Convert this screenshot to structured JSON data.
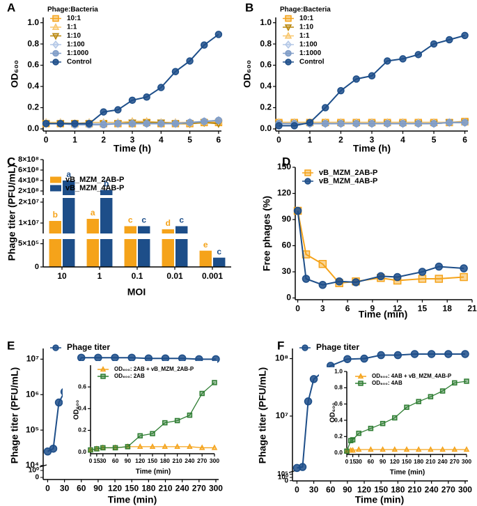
{
  "chart_data": [
    {
      "type": "line",
      "panel": "A",
      "xlabel": "Time (h)",
      "ylabel": "OD₆₀₀",
      "legend_title": "Phage:Bacteria",
      "legend": "upper left",
      "x": [
        0,
        0.5,
        1,
        1.5,
        2,
        2.5,
        3,
        3.5,
        4,
        4.5,
        5,
        5.5,
        6
      ],
      "xlim": [
        -0.1,
        6.1
      ],
      "xticks": [
        0,
        1,
        2,
        3,
        4,
        5,
        6
      ],
      "ylim": [
        -0.02,
        1.05
      ],
      "yticks": [
        {
          "value": 0,
          "label": "0.0"
        },
        0.2,
        0.4,
        0.6,
        0.8,
        {
          "value": 1,
          "label": "1.0"
        }
      ],
      "series": [
        {
          "name": "10:1",
          "color": "#f5a31a",
          "marker": "square",
          "values": [
            0.05,
            0.05,
            0.05,
            0.05,
            0.05,
            0.05,
            0.05,
            0.06,
            0.05,
            0.05,
            0.05,
            0.06,
            0.06
          ]
        },
        {
          "name": "1:1",
          "color": "#f8c66b",
          "marker": "triangle",
          "values": [
            0.06,
            0.06,
            0.05,
            0.06,
            0.06,
            0.06,
            0.07,
            0.07,
            0.06,
            0.06,
            0.06,
            0.07,
            0.07
          ]
        },
        {
          "name": "1:10",
          "color": "#b8860b",
          "marker": "triangle-down",
          "values": [
            0.05,
            0.05,
            0.05,
            0.05,
            0.05,
            0.05,
            0.06,
            0.06,
            0.06,
            0.05,
            0.05,
            0.06,
            0.05
          ]
        },
        {
          "name": "1:100",
          "color": "#b3c7e6",
          "marker": "diamond",
          "values": [
            0.05,
            0.05,
            0.04,
            0.05,
            0.05,
            0.05,
            0.05,
            0.05,
            0.05,
            0.05,
            0.06,
            0.07,
            0.08
          ]
        },
        {
          "name": "1:1000",
          "color": "#7f9cc7",
          "marker": "circle",
          "values": [
            0.05,
            0.05,
            0.04,
            0.04,
            0.04,
            0.05,
            0.05,
            0.05,
            0.05,
            0.05,
            0.06,
            0.07,
            0.08
          ]
        },
        {
          "name": "Control",
          "color": "#1d4e89",
          "marker": "circle",
          "values": [
            0.05,
            0.05,
            0.05,
            0.05,
            0.16,
            0.18,
            0.27,
            0.3,
            0.39,
            0.54,
            0.64,
            0.79,
            0.89
          ]
        }
      ]
    },
    {
      "type": "line",
      "panel": "B",
      "xlabel": "Time (h)",
      "ylabel": "OD₆₀₀",
      "legend_title": "Phage:Bacteria",
      "legend": "upper left",
      "x": [
        0,
        0.5,
        1,
        1.5,
        2,
        2.5,
        3,
        3.5,
        4,
        4.5,
        5,
        5.5,
        6
      ],
      "xlim": [
        -0.1,
        6.1
      ],
      "xticks": [
        0,
        1,
        2,
        3,
        4,
        5,
        6
      ],
      "ylim": [
        -0.02,
        1.05
      ],
      "yticks": [
        {
          "value": 0,
          "label": "0.0"
        },
        0.2,
        0.4,
        0.6,
        0.8,
        {
          "value": 1,
          "label": "1.0"
        }
      ],
      "series": [
        {
          "name": "10:1",
          "color": "#f5a31a",
          "marker": "square",
          "values": [
            0.06,
            0.06,
            0.06,
            0.06,
            0.06,
            0.06,
            0.06,
            0.06,
            0.06,
            0.06,
            0.06,
            0.06,
            0.07
          ]
        },
        {
          "name": "1:10",
          "color": "#b8860b",
          "marker": "triangle-down",
          "values": [
            0.05,
            0.05,
            0.05,
            0.05,
            0.05,
            0.05,
            0.05,
            0.05,
            0.05,
            0.05,
            0.05,
            0.06,
            0.06
          ]
        },
        {
          "name": "1:1",
          "color": "#f8c66b",
          "marker": "triangle",
          "values": [
            0.06,
            0.06,
            0.06,
            0.06,
            0.06,
            0.06,
            0.06,
            0.06,
            0.06,
            0.06,
            0.06,
            0.06,
            0.06
          ]
        },
        {
          "name": "1:100",
          "color": "#b3c7e6",
          "marker": "diamond",
          "values": [
            0.05,
            0.05,
            0.05,
            0.05,
            0.05,
            0.05,
            0.05,
            0.05,
            0.05,
            0.05,
            0.05,
            0.06,
            0.06
          ]
        },
        {
          "name": "1:1000",
          "color": "#7f9cc7",
          "marker": "circle",
          "values": [
            0.05,
            0.05,
            0.05,
            0.05,
            0.05,
            0.05,
            0.05,
            0.05,
            0.05,
            0.05,
            0.05,
            0.06,
            0.06
          ]
        },
        {
          "name": "Control",
          "color": "#1d4e89",
          "marker": "circle",
          "values": [
            0.03,
            0.03,
            0.06,
            0.2,
            0.36,
            0.47,
            0.5,
            0.64,
            0.66,
            0.7,
            0.8,
            0.84,
            0.88
          ]
        }
      ]
    },
    {
      "type": "broken-bar",
      "panel": "C",
      "xlabel": "MOI",
      "ylabel": "Phage titer (PFU/mL)",
      "legend": "upper left",
      "categories": [
        "10",
        "1",
        "0.1",
        "0.01",
        "0.001"
      ],
      "y_segments": [
        {
          "ylim": [
            0,
            600000
          ],
          "yticks": [
            0,
            {
              "value": 500000,
              "label": "5×10⁵"
            }
          ]
        },
        {
          "ylim": [
            5000000,
            22000000
          ],
          "yticks": [
            {
              "value": 10000000,
              "label": "1×10⁷"
            },
            {
              "value": 20000000,
              "label": "2×10⁷"
            }
          ]
        },
        {
          "ylim": [
            120000000,
            800000000
          ],
          "yticks": [
            {
              "value": 200000000,
              "label": "2×10⁸"
            },
            {
              "value": 400000000,
              "label": "4×10⁸"
            },
            {
              "value": 600000000,
              "label": "6×10⁸"
            },
            {
              "value": 800000000,
              "label": "8×10⁸"
            }
          ]
        }
      ],
      "series": [
        {
          "name": "vB_MZM_2AB-P",
          "color": "#f5a31a",
          "values": [
            11000000,
            12000000,
            8500000,
            7000000,
            350000
          ],
          "letters": [
            "b",
            "a",
            "c",
            "d",
            "e"
          ]
        },
        {
          "name": "vB_MZM_4AB-P",
          "color": "#1d4e89",
          "values": [
            400000000,
            220000000,
            8500000,
            8500000,
            200000
          ],
          "letters": [
            "a",
            "b",
            "c",
            "c",
            "c"
          ]
        }
      ]
    },
    {
      "type": "line",
      "panel": "D",
      "xlabel": "Time (min)",
      "ylabel": "Free phages (%)",
      "legend": "upper left",
      "x": [
        0,
        1,
        3,
        5,
        7,
        10,
        12,
        15,
        17,
        20
      ],
      "xlim": [
        -0.3,
        21
      ],
      "xticks": [
        0,
        3,
        6,
        9,
        12,
        15,
        18,
        21
      ],
      "ylim": [
        -2,
        150
      ],
      "yticks": [
        0,
        30,
        60,
        90,
        120,
        150
      ],
      "series": [
        {
          "name": "vB_MZM_2AB-P",
          "color": "#f5a31a",
          "marker": "square",
          "values": [
            100,
            50,
            39,
            17,
            19,
            23,
            20,
            22,
            22,
            24
          ]
        },
        {
          "name": "vB_MZM_4AB-P",
          "color": "#1d4e89",
          "marker": "circle",
          "values": [
            100,
            22,
            15,
            19,
            18,
            25,
            24,
            30,
            36,
            34
          ]
        }
      ]
    },
    {
      "type": "line",
      "panel": "E",
      "xlabel": "Time (min)",
      "ylabel": "Phage titer (PFU/mL)",
      "legend": "upper left",
      "yscale": "log",
      "x": [
        0,
        10,
        20,
        30,
        60,
        90,
        120,
        150,
        180,
        210,
        240,
        270,
        300
      ],
      "xlim": [
        -8,
        305
      ],
      "xticks": [
        0,
        30,
        60,
        90,
        120,
        150,
        180,
        210,
        240,
        270,
        300
      ],
      "ylim": [
        10000,
        20000000
      ],
      "yticks": [
        {
          "value": 10000,
          "label": "10⁴"
        },
        {
          "value": 100000,
          "label": "10⁵"
        },
        {
          "value": 1000000,
          "label": "10⁶"
        },
        {
          "value": 10000000,
          "label": "10⁷"
        }
      ],
      "y_break_ticks": [
        {
          "value": 1,
          "label": "10⁰"
        },
        0
      ],
      "series": [
        {
          "name": "Phage titer",
          "color": "#1d4e89",
          "marker": "circle",
          "values": [
            25000,
            30000,
            600000,
            1200000,
            11000000,
            11000000,
            11000000,
            11000000,
            10500000,
            10500000,
            10500000,
            10000000,
            10000000
          ]
        }
      ]
    },
    {
      "type": "line",
      "xlabel": "Time (min)",
      "ylabel": "OD₆₀₀",
      "legend": "upper left",
      "x": [
        0,
        15,
        30,
        60,
        90,
        120,
        150,
        180,
        210,
        240,
        270,
        300
      ],
      "xlim": [
        0,
        300
      ],
      "xticks": [
        0,
        15,
        30,
        60,
        90,
        120,
        150,
        180,
        210,
        240,
        270,
        300
      ],
      "ylim": [
        -0.015,
        0.8
      ],
      "yticks": [
        {
          "value": 0,
          "label": "0.0"
        },
        0.2,
        0.4,
        0.6
      ],
      "series": [
        {
          "name": "OD₆₀₀: 2AB + vB_MZM_2AB-P",
          "color": "#f5a31a",
          "marker": "triangle",
          "values": [
            0.02,
            0.03,
            0.04,
            0.04,
            0.05,
            0.05,
            0.05,
            0.05,
            0.05,
            0.05,
            0.04,
            0.04
          ]
        },
        {
          "name": "OD₆₀₀: 2AB",
          "color": "#2e7d32",
          "marker": "square",
          "values": [
            0.02,
            0.03,
            0.04,
            0.04,
            0.05,
            0.15,
            0.17,
            0.27,
            0.29,
            0.34,
            0.54,
            0.64
          ]
        }
      ]
    },
    {
      "type": "line",
      "panel": "F",
      "xlabel": "Time (min)",
      "ylabel": "Phage titer (PFU/mL)",
      "legend": "upper left",
      "yscale": "log",
      "x": [
        0,
        10,
        20,
        30,
        60,
        90,
        120,
        150,
        180,
        210,
        240,
        270,
        300
      ],
      "xlim": [
        -8,
        305
      ],
      "xticks": [
        0,
        30,
        60,
        90,
        120,
        150,
        180,
        210,
        240,
        270,
        300
      ],
      "ylim": [
        1100000,
        150000000
      ],
      "yticks": [
        {
          "value": 10000000,
          "label": "10⁷"
        },
        {
          "value": 100000000,
          "label": "10⁸"
        }
      ],
      "y_break_ticks": [
        {
          "value": 100000,
          "label": "10⁵"
        },
        {
          "value": 1,
          "label": "10⁰"
        },
        0
      ],
      "series": [
        {
          "name": "Phage titer",
          "color": "#1d4e89",
          "marker": "circle",
          "values": [
            1250000,
            1300000,
            18000000,
            44000000,
            75000000,
            98000000,
            100000000,
            115000000,
            115000000,
            120000000,
            120000000,
            120000000,
            120000000
          ]
        }
      ]
    },
    {
      "type": "line",
      "xlabel": "Time (min)",
      "ylabel": "OD₆₀₀",
      "legend": "upper left",
      "x": [
        0,
        10,
        15,
        30,
        60,
        90,
        120,
        150,
        180,
        210,
        240,
        270,
        300
      ],
      "xlim": [
        0,
        300
      ],
      "xticks": [
        0,
        15,
        30,
        60,
        90,
        120,
        150,
        180,
        210,
        240,
        270,
        300
      ],
      "ylim": [
        -0.02,
        1.0
      ],
      "yticks": [
        {
          "value": 0,
          "label": "0.0"
        },
        0.2,
        0.4,
        0.6,
        0.8,
        {
          "value": 1,
          "label": "1.0"
        }
      ],
      "series": [
        {
          "name": "OD₆₀₀: 4AB + vB_MZM_4AB-P",
          "color": "#f5a31a",
          "marker": "triangle",
          "values": [
            0.02,
            0.03,
            0.03,
            0.04,
            0.04,
            0.04,
            0.04,
            0.04,
            0.04,
            0.04,
            0.04,
            0.04,
            0.04
          ]
        },
        {
          "name": "OD₆₀₀: 4AB",
          "color": "#2e7d32",
          "marker": "square",
          "values": [
            0.02,
            0.15,
            0.16,
            0.24,
            0.3,
            0.36,
            0.43,
            0.56,
            0.63,
            0.69,
            0.76,
            0.86,
            0.88
          ]
        }
      ]
    }
  ]
}
